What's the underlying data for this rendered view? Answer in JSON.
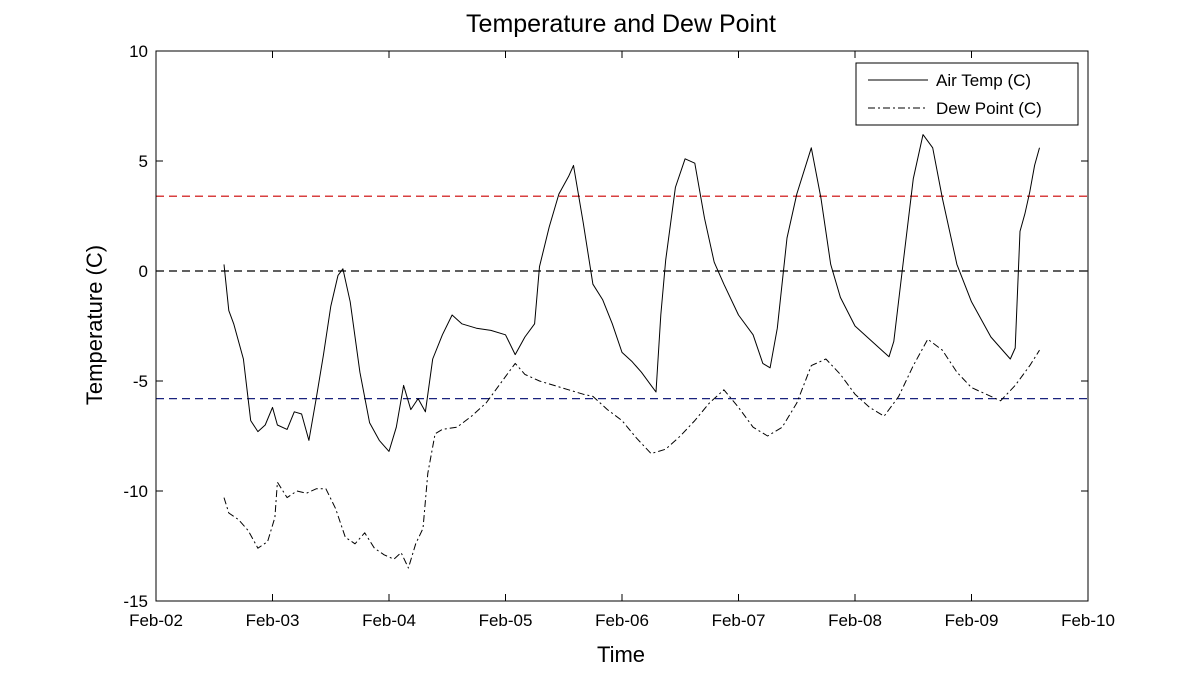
{
  "chart_data": {
    "type": "line",
    "title": "Temperature and Dew Point",
    "xlabel": "Time",
    "ylabel": "Temperature (C)",
    "xlim": [
      "2024-02-02",
      "2024-02-10"
    ],
    "ylim": [
      -15,
      10
    ],
    "x_ticks": [
      "Feb-02",
      "Feb-03",
      "Feb-04",
      "Feb-05",
      "Feb-06",
      "Feb-07",
      "Feb-08",
      "Feb-09",
      "Feb-10"
    ],
    "y_ticks": [
      -15,
      -10,
      -5,
      0,
      5,
      10
    ],
    "grid": false,
    "legend_position": "top-right",
    "series": [
      {
        "name": "Air Temp (C)",
        "style": "solid",
        "color": "#000000",
        "points": [
          [
            "2024-02-02T14:00",
            0.3
          ],
          [
            "2024-02-02T15:00",
            -1.8
          ],
          [
            "2024-02-02T16:00",
            -2.4
          ],
          [
            "2024-02-02T18:00",
            -4.0
          ],
          [
            "2024-02-02T19:30",
            -6.8
          ],
          [
            "2024-02-02T21:00",
            -7.3
          ],
          [
            "2024-02-02T22:30",
            -7.0
          ],
          [
            "2024-02-03T00:00",
            -6.2
          ],
          [
            "2024-02-03T01:00",
            -7.0
          ],
          [
            "2024-02-03T03:00",
            -7.2
          ],
          [
            "2024-02-03T04:30",
            -6.4
          ],
          [
            "2024-02-03T06:00",
            -6.5
          ],
          [
            "2024-02-03T07:30",
            -7.7
          ],
          [
            "2024-02-03T09:00",
            -5.8
          ],
          [
            "2024-02-03T10:30",
            -3.8
          ],
          [
            "2024-02-03T12:00",
            -1.6
          ],
          [
            "2024-02-03T13:30",
            -0.2
          ],
          [
            "2024-02-03T14:30",
            0.1
          ],
          [
            "2024-02-03T16:00",
            -1.4
          ],
          [
            "2024-02-03T18:00",
            -4.6
          ],
          [
            "2024-02-03T20:00",
            -6.9
          ],
          [
            "2024-02-03T22:00",
            -7.7
          ],
          [
            "2024-02-04T00:00",
            -8.2
          ],
          [
            "2024-02-04T01:30",
            -7.1
          ],
          [
            "2024-02-04T03:00",
            -5.2
          ],
          [
            "2024-02-04T04:30",
            -6.3
          ],
          [
            "2024-02-04T06:00",
            -5.8
          ],
          [
            "2024-02-04T07:30",
            -6.4
          ],
          [
            "2024-02-04T09:00",
            -4.0
          ],
          [
            "2024-02-04T11:00",
            -2.9
          ],
          [
            "2024-02-04T13:00",
            -2.0
          ],
          [
            "2024-02-04T15:00",
            -2.4
          ],
          [
            "2024-02-04T18:00",
            -2.6
          ],
          [
            "2024-02-04T21:00",
            -2.7
          ],
          [
            "2024-02-05T00:00",
            -2.9
          ],
          [
            "2024-02-05T02:00",
            -3.8
          ],
          [
            "2024-02-05T04:00",
            -3.0
          ],
          [
            "2024-02-05T06:00",
            -2.4
          ],
          [
            "2024-02-05T07:00",
            0.2
          ],
          [
            "2024-02-05T09:00",
            2.0
          ],
          [
            "2024-02-05T11:00",
            3.5
          ],
          [
            "2024-02-05T13:00",
            4.3
          ],
          [
            "2024-02-05T14:00",
            4.8
          ],
          [
            "2024-02-05T16:00",
            2.2
          ],
          [
            "2024-02-05T18:00",
            -0.6
          ],
          [
            "2024-02-05T20:00",
            -1.3
          ],
          [
            "2024-02-05T22:00",
            -2.4
          ],
          [
            "2024-02-06T00:00",
            -3.7
          ],
          [
            "2024-02-06T02:00",
            -4.1
          ],
          [
            "2024-02-06T04:00",
            -4.6
          ],
          [
            "2024-02-06T06:00",
            -5.2
          ],
          [
            "2024-02-06T07:00",
            -5.5
          ],
          [
            "2024-02-06T08:00",
            -2.0
          ],
          [
            "2024-02-06T09:00",
            0.5
          ],
          [
            "2024-02-06T11:00",
            3.8
          ],
          [
            "2024-02-06T13:00",
            5.1
          ],
          [
            "2024-02-06T15:00",
            4.9
          ],
          [
            "2024-02-06T17:00",
            2.4
          ],
          [
            "2024-02-06T19:00",
            0.4
          ],
          [
            "2024-02-06T21:00",
            -0.6
          ],
          [
            "2024-02-07T00:00",
            -2.0
          ],
          [
            "2024-02-07T03:00",
            -2.9
          ],
          [
            "2024-02-07T05:00",
            -4.2
          ],
          [
            "2024-02-07T06:30",
            -4.4
          ],
          [
            "2024-02-07T08:00",
            -2.6
          ],
          [
            "2024-02-07T10:00",
            1.5
          ],
          [
            "2024-02-07T12:00",
            3.5
          ],
          [
            "2024-02-07T15:00",
            5.6
          ],
          [
            "2024-02-07T17:00",
            3.3
          ],
          [
            "2024-02-07T19:00",
            0.3
          ],
          [
            "2024-02-07T21:00",
            -1.2
          ],
          [
            "2024-02-08T00:00",
            -2.5
          ],
          [
            "2024-02-08T03:00",
            -3.1
          ],
          [
            "2024-02-08T06:00",
            -3.7
          ],
          [
            "2024-02-08T07:00",
            -3.9
          ],
          [
            "2024-02-08T08:00",
            -3.2
          ],
          [
            "2024-02-08T10:00",
            0.5
          ],
          [
            "2024-02-08T12:00",
            4.2
          ],
          [
            "2024-02-08T14:00",
            6.2
          ],
          [
            "2024-02-08T16:00",
            5.6
          ],
          [
            "2024-02-08T18:00",
            3.3
          ],
          [
            "2024-02-08T21:00",
            0.3
          ],
          [
            "2024-02-09T00:00",
            -1.4
          ],
          [
            "2024-02-09T04:00",
            -3.0
          ],
          [
            "2024-02-09T06:00",
            -3.5
          ],
          [
            "2024-02-09T08:00",
            -4.0
          ],
          [
            "2024-02-09T09:00",
            -3.5
          ],
          [
            "2024-02-09T10:00",
            1.8
          ],
          [
            "2024-02-09T11:00",
            2.6
          ],
          [
            "2024-02-09T12:00",
            3.6
          ],
          [
            "2024-02-09T13:00",
            4.8
          ],
          [
            "2024-02-09T14:00",
            5.6
          ]
        ]
      },
      {
        "name": "Dew Point (C)",
        "style": "dash-dot",
        "color": "#000000",
        "points": [
          [
            "2024-02-02T14:00",
            -10.3
          ],
          [
            "2024-02-02T15:00",
            -11.0
          ],
          [
            "2024-02-02T17:00",
            -11.3
          ],
          [
            "2024-02-02T19:00",
            -11.8
          ],
          [
            "2024-02-02T21:00",
            -12.6
          ],
          [
            "2024-02-02T23:00",
            -12.3
          ],
          [
            "2024-02-03T00:30",
            -11.2
          ],
          [
            "2024-02-03T01:00",
            -9.6
          ],
          [
            "2024-02-03T03:00",
            -10.3
          ],
          [
            "2024-02-03T05:00",
            -10.0
          ],
          [
            "2024-02-03T07:00",
            -10.1
          ],
          [
            "2024-02-03T09:00",
            -9.9
          ],
          [
            "2024-02-03T11:00",
            -9.9
          ],
          [
            "2024-02-03T13:00",
            -10.8
          ],
          [
            "2024-02-03T15:00",
            -12.1
          ],
          [
            "2024-02-03T17:00",
            -12.4
          ],
          [
            "2024-02-03T19:00",
            -11.9
          ],
          [
            "2024-02-03T21:00",
            -12.6
          ],
          [
            "2024-02-03T23:00",
            -12.9
          ],
          [
            "2024-02-04T01:00",
            -13.1
          ],
          [
            "2024-02-04T02:30",
            -12.8
          ],
          [
            "2024-02-04T04:00",
            -13.5
          ],
          [
            "2024-02-04T05:30",
            -12.4
          ],
          [
            "2024-02-04T07:00",
            -11.7
          ],
          [
            "2024-02-04T08:00",
            -9.2
          ],
          [
            "2024-02-04T09:30",
            -7.4
          ],
          [
            "2024-02-04T11:00",
            -7.2
          ],
          [
            "2024-02-04T14:00",
            -7.1
          ],
          [
            "2024-02-04T17:00",
            -6.6
          ],
          [
            "2024-02-04T20:00",
            -6.0
          ],
          [
            "2024-02-04T22:00",
            -5.4
          ],
          [
            "2024-02-05T00:00",
            -4.8
          ],
          [
            "2024-02-05T02:00",
            -4.2
          ],
          [
            "2024-02-05T04:00",
            -4.7
          ],
          [
            "2024-02-05T07:00",
            -5.0
          ],
          [
            "2024-02-05T10:00",
            -5.2
          ],
          [
            "2024-02-05T13:00",
            -5.4
          ],
          [
            "2024-02-05T16:00",
            -5.6
          ],
          [
            "2024-02-05T18:00",
            -5.7
          ],
          [
            "2024-02-05T21:00",
            -6.3
          ],
          [
            "2024-02-06T00:00",
            -6.8
          ],
          [
            "2024-02-06T03:00",
            -7.6
          ],
          [
            "2024-02-06T06:00",
            -8.3
          ],
          [
            "2024-02-06T09:00",
            -8.1
          ],
          [
            "2024-02-06T12:00",
            -7.5
          ],
          [
            "2024-02-06T15:00",
            -6.8
          ],
          [
            "2024-02-06T18:00",
            -6.0
          ],
          [
            "2024-02-06T21:00",
            -5.4
          ],
          [
            "2024-02-07T00:00",
            -6.2
          ],
          [
            "2024-02-07T03:00",
            -7.1
          ],
          [
            "2024-02-07T06:00",
            -7.5
          ],
          [
            "2024-02-07T09:00",
            -7.1
          ],
          [
            "2024-02-07T12:00",
            -6.0
          ],
          [
            "2024-02-07T15:00",
            -4.3
          ],
          [
            "2024-02-07T18:00",
            -4.0
          ],
          [
            "2024-02-07T21:00",
            -4.7
          ],
          [
            "2024-02-08T00:00",
            -5.6
          ],
          [
            "2024-02-08T03:00",
            -6.2
          ],
          [
            "2024-02-08T06:00",
            -6.6
          ],
          [
            "2024-02-08T09:00",
            -5.7
          ],
          [
            "2024-02-08T12:00",
            -4.3
          ],
          [
            "2024-02-08T15:00",
            -3.1
          ],
          [
            "2024-02-08T18:00",
            -3.6
          ],
          [
            "2024-02-08T21:00",
            -4.6
          ],
          [
            "2024-02-09T00:00",
            -5.3
          ],
          [
            "2024-02-09T03:00",
            -5.6
          ],
          [
            "2024-02-09T06:00",
            -5.9
          ],
          [
            "2024-02-09T09:00",
            -5.2
          ],
          [
            "2024-02-09T12:00",
            -4.3
          ],
          [
            "2024-02-09T14:00",
            -3.6
          ]
        ]
      }
    ],
    "reference_lines": [
      {
        "y": 3.4,
        "color": "#cc0000",
        "style": "dashed"
      },
      {
        "y": 0,
        "color": "#000000",
        "style": "dashed"
      },
      {
        "y": -5.8,
        "color": "#1a237e",
        "style": "dashed"
      }
    ]
  }
}
